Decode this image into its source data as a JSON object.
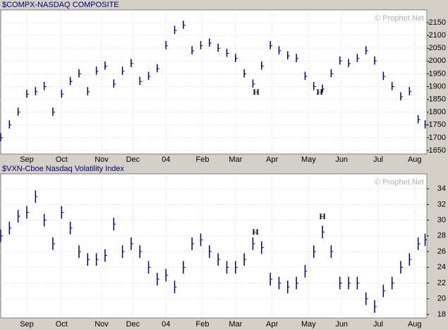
{
  "chart_data": [
    {
      "type": "ohlc",
      "title": "$COMPX-NASDAQ COMPOSITE",
      "watermark": "© Prophet.Net",
      "color": "#000080",
      "x": [
        0,
        5,
        10,
        15,
        20,
        25,
        30,
        35,
        40,
        45,
        50,
        55,
        60,
        65,
        70,
        75,
        80,
        85,
        90,
        95,
        100,
        105,
        110,
        115,
        120,
        125,
        130,
        135,
        140,
        145,
        150,
        155,
        160,
        165,
        170,
        175,
        180,
        185,
        190,
        195,
        200,
        205,
        210,
        215,
        220,
        225,
        230,
        235,
        240,
        244
      ],
      "high": [
        1718,
        1768,
        1818,
        1888,
        1898,
        1918,
        1818,
        1888,
        1938,
        1968,
        1898,
        1978,
        1998,
        1928,
        1978,
        2008,
        1938,
        1958,
        1988,
        2078,
        2138,
        2158,
        2058,
        2078,
        2088,
        2068,
        2048,
        2028,
        1968,
        1928,
        1998,
        2078,
        2058,
        2038,
        2028,
        1958,
        1918,
        1908,
        1968,
        2018,
        2008,
        2028,
        2058,
        2018,
        1958,
        1918,
        1878,
        1898,
        1788,
        1768
      ],
      "low": [
        1686,
        1736,
        1786,
        1856,
        1866,
        1886,
        1786,
        1856,
        1906,
        1936,
        1866,
        1946,
        1966,
        1896,
        1946,
        1976,
        1906,
        1926,
        1956,
        2046,
        2106,
        2126,
        2026,
        2046,
        2056,
        2036,
        2016,
        1996,
        1936,
        1896,
        1966,
        2046,
        2026,
        2006,
        1996,
        1926,
        1886,
        1876,
        1936,
        1986,
        1976,
        1996,
        2026,
        1986,
        1926,
        1886,
        1846,
        1866,
        1756,
        1736
      ],
      "close": [
        1700,
        1750,
        1800,
        1870,
        1880,
        1900,
        1800,
        1870,
        1920,
        1950,
        1880,
        1960,
        1980,
        1910,
        1960,
        1990,
        1920,
        1940,
        1970,
        2060,
        2120,
        2140,
        2040,
        2060,
        2070,
        2050,
        2030,
        2010,
        1950,
        1910,
        1980,
        2060,
        2040,
        2020,
        2010,
        1940,
        1900,
        1890,
        1950,
        2000,
        1990,
        2010,
        2040,
        2000,
        1940,
        1900,
        1860,
        1880,
        1770,
        1750
      ],
      "xlim": [
        0,
        245
      ],
      "xticks": [
        {
          "value": 15,
          "label": "Sep"
        },
        {
          "value": 35,
          "label": "Oct"
        },
        {
          "value": 58,
          "label": "Nov"
        },
        {
          "value": 76,
          "label": "Dec"
        },
        {
          "value": 95,
          "label": "04"
        },
        {
          "value": 116,
          "label": "Feb"
        },
        {
          "value": 135,
          "label": "Mar"
        },
        {
          "value": 156,
          "label": "Apr"
        },
        {
          "value": 177,
          "label": "May"
        },
        {
          "value": 196,
          "label": "Jun"
        },
        {
          "value": 217,
          "label": "Jul"
        },
        {
          "value": 238,
          "label": "Aug"
        }
      ],
      "ylim": [
        1636,
        2200
      ],
      "yticks": [
        1650,
        1700,
        1750,
        1800,
        1850,
        1900,
        1950,
        2000,
        2050,
        2100,
        2150
      ],
      "grid": true,
      "annotations": [
        {
          "text": "H"
        },
        {
          "text": "H"
        }
      ]
    },
    {
      "type": "ohlc",
      "title": "$VXN-Cboe Nasdaq Volatility Index",
      "watermark": "© Prophet.Net",
      "color": "#000080",
      "x": [
        0,
        5,
        10,
        15,
        20,
        25,
        30,
        35,
        40,
        45,
        50,
        55,
        60,
        65,
        70,
        75,
        80,
        85,
        90,
        95,
        100,
        105,
        110,
        115,
        120,
        125,
        130,
        135,
        140,
        145,
        150,
        155,
        160,
        165,
        170,
        175,
        180,
        185,
        190,
        195,
        200,
        205,
        210,
        215,
        220,
        225,
        230,
        235,
        240,
        244
      ],
      "high": [
        28.8,
        29.8,
        31.3,
        31.8,
        33.8,
        30.8,
        27.8,
        31.8,
        29.8,
        26.8,
        25.8,
        25.8,
        26.3,
        30.3,
        26.8,
        27.8,
        26.8,
        24.8,
        23.3,
        23.8,
        22.3,
        24.8,
        27.8,
        28.3,
        26.8,
        25.8,
        24.8,
        24.8,
        25.8,
        27.8,
        27.3,
        23.3,
        22.8,
        22.3,
        22.8,
        24.3,
        26.8,
        29.3,
        26.8,
        22.8,
        22.8,
        22.8,
        20.8,
        19.8,
        21.8,
        22.8,
        24.8,
        25.8,
        27.8,
        28.3
      ],
      "low": [
        27.2,
        28.2,
        29.7,
        30.2,
        32.2,
        29.2,
        26.2,
        30.2,
        28.2,
        25.2,
        24.2,
        24.2,
        24.7,
        28.7,
        25.2,
        26.2,
        25.2,
        23.2,
        21.7,
        22.2,
        20.7,
        23.2,
        26.2,
        26.7,
        25.2,
        24.2,
        23.2,
        23.2,
        24.2,
        26.2,
        25.7,
        21.7,
        21.2,
        20.7,
        21.2,
        22.7,
        25.2,
        27.7,
        25.2,
        21.2,
        21.2,
        21.2,
        19.2,
        18.2,
        20.2,
        21.2,
        23.2,
        24.2,
        26.2,
        26.7
      ],
      "close": [
        28,
        29,
        30.5,
        31,
        33,
        30,
        27,
        31,
        29,
        26,
        25,
        25,
        25.5,
        29.5,
        26,
        27,
        26,
        24,
        22.5,
        23,
        21.5,
        24,
        27,
        27.5,
        26,
        25,
        24,
        24,
        25,
        27,
        26.5,
        22.5,
        22,
        21.5,
        22,
        23.5,
        26,
        28.5,
        26,
        22,
        22,
        22,
        20,
        19,
        21,
        22,
        24,
        25,
        27,
        27.5
      ],
      "xlim": [
        0,
        245
      ],
      "xticks": [
        {
          "value": 15,
          "label": "Sep"
        },
        {
          "value": 35,
          "label": "Oct"
        },
        {
          "value": 58,
          "label": "Nov"
        },
        {
          "value": 76,
          "label": "Dec"
        },
        {
          "value": 95,
          "label": "04"
        },
        {
          "value": 116,
          "label": "Feb"
        },
        {
          "value": 135,
          "label": "Mar"
        },
        {
          "value": 156,
          "label": "Apr"
        },
        {
          "value": 177,
          "label": "May"
        },
        {
          "value": 196,
          "label": "Jun"
        },
        {
          "value": 217,
          "label": "Jul"
        },
        {
          "value": 238,
          "label": "Aug"
        }
      ],
      "ylim": [
        17.55,
        35.9
      ],
      "yticks": [
        18,
        20,
        22,
        24,
        26,
        28,
        30,
        32,
        34
      ],
      "grid": true,
      "annotations": [
        {
          "text": "H"
        },
        {
          "text": "H"
        }
      ]
    }
  ]
}
